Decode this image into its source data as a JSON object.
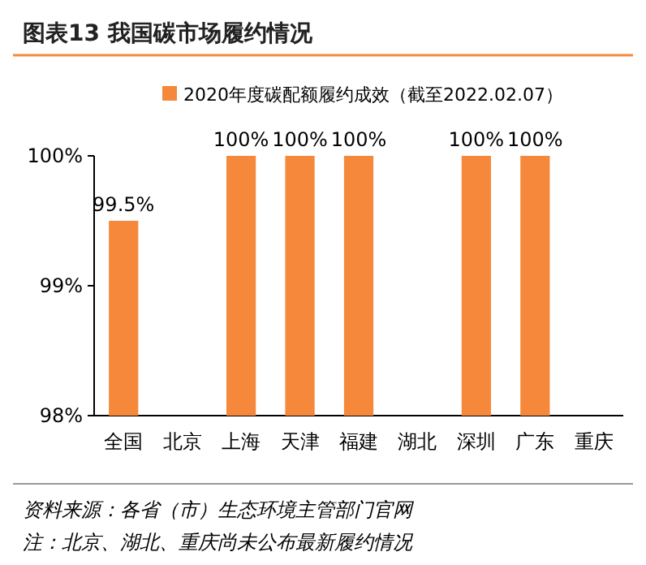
{
  "chart_data": {
    "type": "bar",
    "title": "图表13   我国碳市场履约情况",
    "categories": [
      "全国",
      "北京",
      "上海",
      "天津",
      "福建",
      "湖北",
      "深圳",
      "广东",
      "重庆"
    ],
    "series": [
      {
        "name": "2020年度碳配额履约成效（截至2022.02.07）",
        "color": "#f5883a",
        "values": [
          99.5,
          null,
          100,
          100,
          100,
          null,
          100,
          100,
          null
        ],
        "value_labels": [
          "99.5%",
          null,
          "100%",
          "100%",
          "100%",
          null,
          "100%",
          "100%",
          null
        ]
      }
    ],
    "ylim": [
      98,
      100
    ],
    "yticks": [
      {
        "value": 98,
        "label": "98%"
      },
      {
        "value": 99,
        "label": "99%"
      },
      {
        "value": 100,
        "label": "100%"
      }
    ],
    "legend": "top",
    "grid": false,
    "annotations": [
      "资料来源：各省（市）生态环境主管部门官网",
      "注：北京、湖北、重庆尚未公布最新履约情况"
    ]
  }
}
